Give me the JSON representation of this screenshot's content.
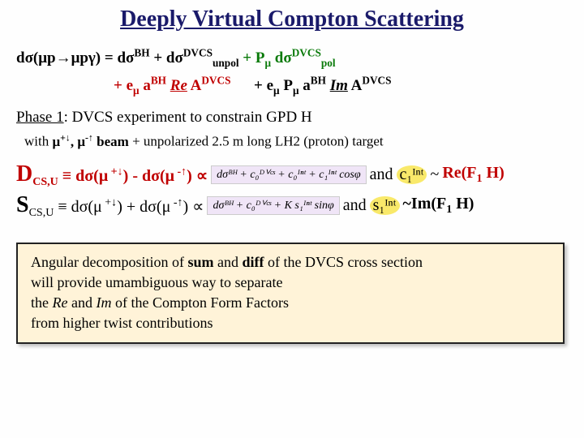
{
  "title": "Deeply Virtual Compton Scattering",
  "eq": {
    "lhs": "dσ(μp→μpγ) = dσ",
    "bh": "BH",
    "plus1": " + dσ",
    "dvcs": "DVCS",
    "unpol": "unpol",
    "plusP": " + P",
    "mu": "μ",
    "dsig": " dσ",
    "pol": "pol",
    "line2a": "+ e",
    "abh": " a",
    "re": "Re",
    "adv": " A",
    "line2plus": " + e",
    "pmu": " P",
    "im": "Im"
  },
  "phase": {
    "label": "Phase 1",
    "rest": ": DVCS experiment to constrain GPD H"
  },
  "with": {
    "pre": "with ",
    "m1": "μ",
    "sup1": "+↓",
    "comma": ", ",
    "m2": "μ",
    "sup2": "-↑",
    "beam": " beam ",
    "rest": "+ unpolarized 2.5 m long LH2 (proton) target"
  },
  "dline": {
    "D": "D",
    "csu": "CS,U",
    "eq": " ≡ dσ(",
    "m": "μ",
    "s1": " +↓",
    "close": ") ",
    "minus": "- ",
    "dsig2": "dσ(",
    "s2": " -↑",
    "close2": ") ∝ ",
    "formula": "dσᴮᴴ + c₀ᴰⱽᶜˢ + c₀ᴵⁿᵗ + c₁ᴵⁿᵗ cosφ",
    "and": " and  ",
    "c1int": "c₁ᴵⁿᵗ",
    "reF": "Re(F",
    "one": "1",
    "H": " H)"
  },
  "sline": {
    "S": "S",
    "csu": "CS,U",
    "eq": " ≡ dσ(",
    "m": "μ",
    "s1": " +↓",
    "close": ") ",
    "plus": "+ ",
    "dsig2": "dσ(",
    "s2": " -↑",
    "close2": ") ∝ ",
    "formula": "dσᴮᴴ + c₀ᴰⱽᶜˢ + K s₁ᴵⁿᵗ sinφ",
    "and": " and ",
    "s1int": "s₁ᴵⁿᵗ",
    "imF": "~Im(F",
    "one": "1",
    "H": " H)"
  },
  "box": {
    "l1a": "Angular decomposition of ",
    "sum": "sum",
    "l1b": " and ",
    "diff": "diff",
    "l1c": " of the DVCS cross section",
    "l2": "will provide umambiguous way to separate",
    "l3a": "the ",
    "re": "Re",
    "l3b": " and ",
    "im": "Im",
    "l3c": " of the Compton Form Factors",
    "l4": "from higher twist contributions"
  },
  "colors": {
    "title": "#1a1a6a",
    "green": "#0a7a0a",
    "red": "#c00000",
    "box_bg": "#fff3d8",
    "highlight": "#f9e96a"
  }
}
